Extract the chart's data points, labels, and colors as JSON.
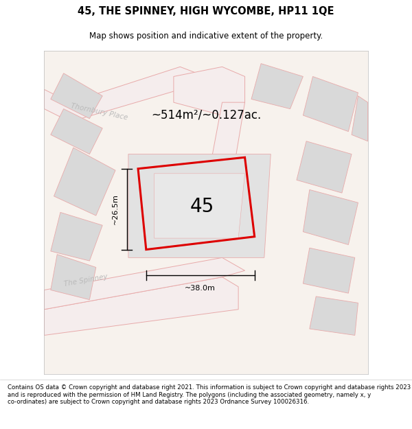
{
  "title": "45, THE SPINNEY, HIGH WYCOMBE, HP11 1QE",
  "subtitle": "Map shows position and indicative extent of the property.",
  "area_label": "~514m²/~0.127ac.",
  "property_number": "45",
  "width_label": "~38.0m",
  "height_label": "~26.5m",
  "footer": "Contains OS data © Crown copyright and database right 2021. This information is subject to Crown copyright and database rights 2023 and is reproduced with the permission of HM Land Registry. The polygons (including the associated geometry, namely x, y co-ordinates) are subject to Crown copyright and database rights 2023 Ordnance Survey 100026316.",
  "bg_color": "#ffffff",
  "map_bg": "#f7f2ed",
  "road_fill": "#f5eded",
  "road_stroke": "#e8aaaa",
  "building_fill": "#d9d9d9",
  "building_stroke": "#e8aaaa",
  "property_stroke": "#dd0000",
  "title_color": "#000000",
  "footer_color": "#000000",
  "map_border": "#cccccc",
  "street_label_color": "#bbbbbb",
  "dim_color": "#000000"
}
